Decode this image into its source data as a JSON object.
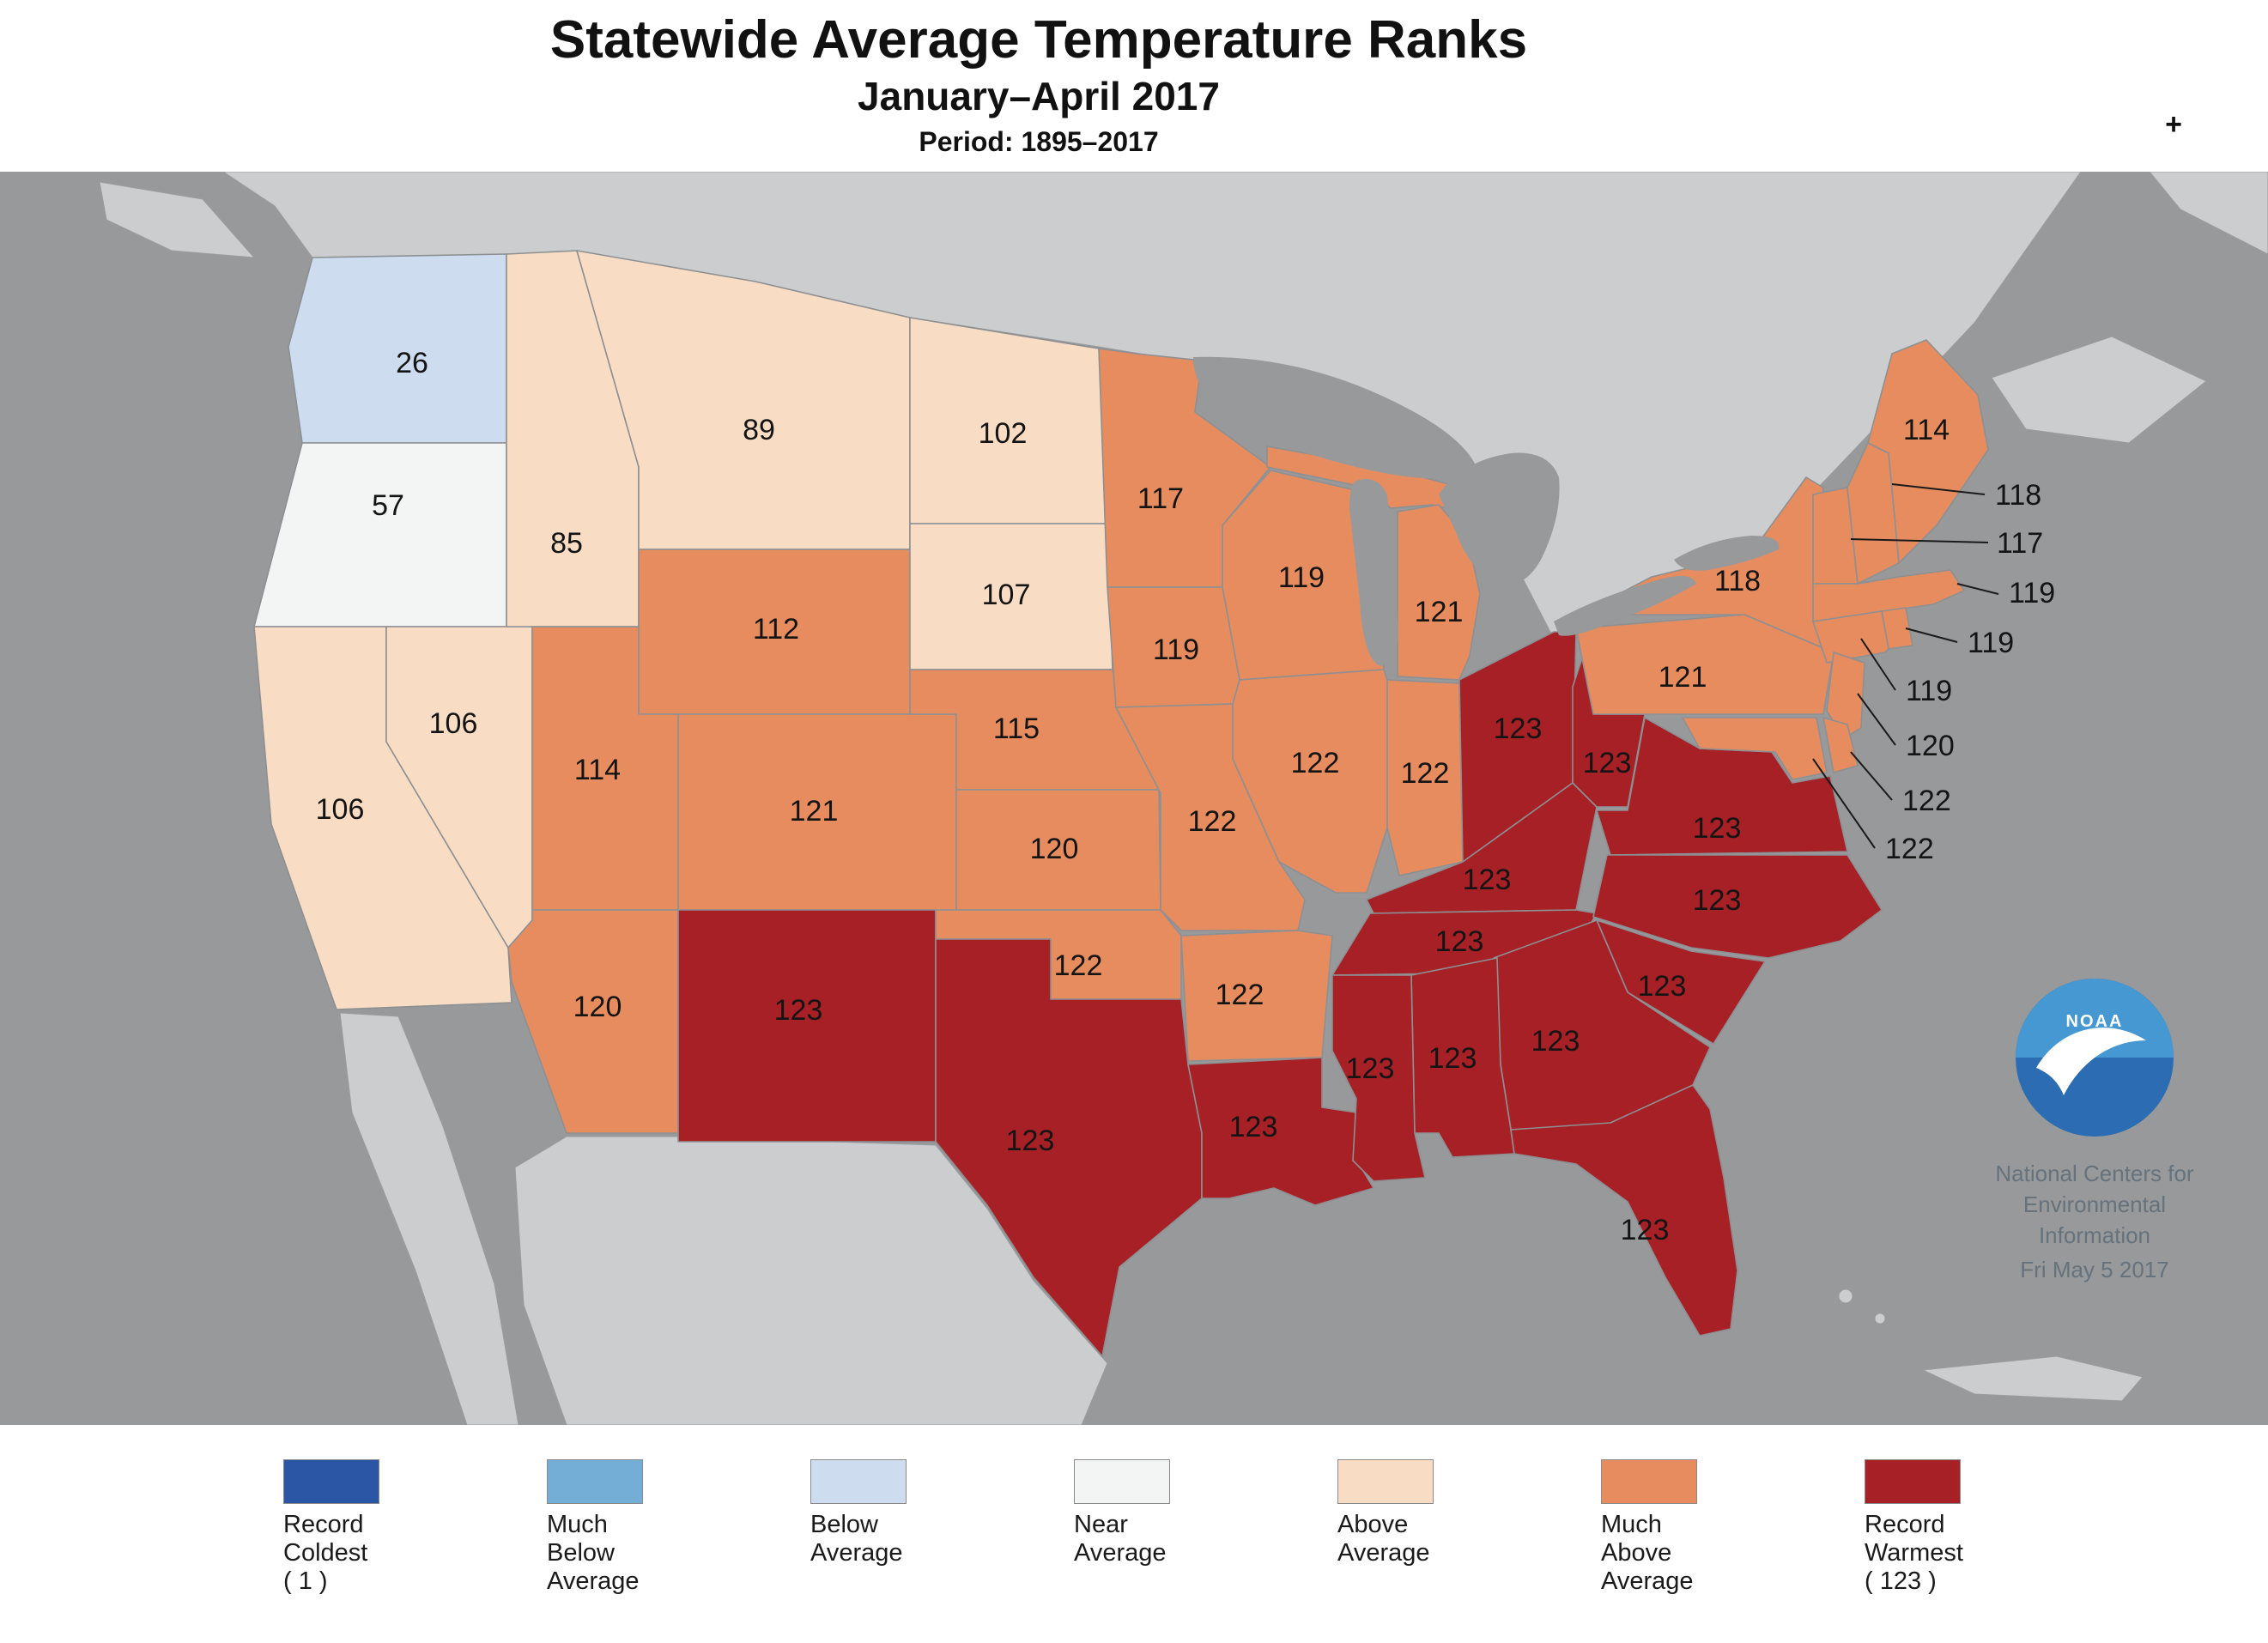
{
  "header": {
    "title": "Statewide Average Temperature Ranks",
    "subtitle": "January–April 2017",
    "period": "Period: 1895–2017",
    "zoom_control": "+"
  },
  "map": {
    "states": [
      {
        "name": "Washington",
        "abbr": "WA",
        "rank": 26,
        "category": "below-average"
      },
      {
        "name": "Oregon",
        "abbr": "OR",
        "rank": 57,
        "category": "near-average"
      },
      {
        "name": "California",
        "abbr": "CA",
        "rank": 106,
        "category": "above-average"
      },
      {
        "name": "Nevada",
        "abbr": "NV",
        "rank": 106,
        "category": "above-average"
      },
      {
        "name": "Idaho",
        "abbr": "ID",
        "rank": 85,
        "category": "above-average"
      },
      {
        "name": "Montana",
        "abbr": "MT",
        "rank": 89,
        "category": "above-average"
      },
      {
        "name": "Wyoming",
        "abbr": "WY",
        "rank": 112,
        "category": "much-above-average"
      },
      {
        "name": "Utah",
        "abbr": "UT",
        "rank": 114,
        "category": "much-above-average"
      },
      {
        "name": "Colorado",
        "abbr": "CO",
        "rank": 121,
        "category": "much-above-average"
      },
      {
        "name": "Arizona",
        "abbr": "AZ",
        "rank": 120,
        "category": "much-above-average"
      },
      {
        "name": "New Mexico",
        "abbr": "NM",
        "rank": 123,
        "category": "record-warmest"
      },
      {
        "name": "North Dakota",
        "abbr": "ND",
        "rank": 102,
        "category": "above-average"
      },
      {
        "name": "South Dakota",
        "abbr": "SD",
        "rank": 107,
        "category": "above-average"
      },
      {
        "name": "Nebraska",
        "abbr": "NE",
        "rank": 115,
        "category": "much-above-average"
      },
      {
        "name": "Kansas",
        "abbr": "KS",
        "rank": 120,
        "category": "much-above-average"
      },
      {
        "name": "Oklahoma",
        "abbr": "OK",
        "rank": 122,
        "category": "much-above-average"
      },
      {
        "name": "Texas",
        "abbr": "TX",
        "rank": 123,
        "category": "record-warmest"
      },
      {
        "name": "Minnesota",
        "abbr": "MN",
        "rank": 117,
        "category": "much-above-average"
      },
      {
        "name": "Iowa",
        "abbr": "IA",
        "rank": 119,
        "category": "much-above-average"
      },
      {
        "name": "Missouri",
        "abbr": "MO",
        "rank": 122,
        "category": "much-above-average"
      },
      {
        "name": "Arkansas",
        "abbr": "AR",
        "rank": 122,
        "category": "much-above-average"
      },
      {
        "name": "Louisiana",
        "abbr": "LA",
        "rank": 123,
        "category": "record-warmest"
      },
      {
        "name": "Wisconsin",
        "abbr": "WI",
        "rank": 119,
        "category": "much-above-average"
      },
      {
        "name": "Illinois",
        "abbr": "IL",
        "rank": 122,
        "category": "much-above-average"
      },
      {
        "name": "Michigan",
        "abbr": "MI",
        "rank": 121,
        "category": "much-above-average"
      },
      {
        "name": "Indiana",
        "abbr": "IN",
        "rank": 122,
        "category": "much-above-average"
      },
      {
        "name": "Ohio",
        "abbr": "OH",
        "rank": 123,
        "category": "record-warmest"
      },
      {
        "name": "Kentucky",
        "abbr": "KY",
        "rank": 123,
        "category": "record-warmest"
      },
      {
        "name": "Tennessee",
        "abbr": "TN",
        "rank": 123,
        "category": "record-warmest"
      },
      {
        "name": "Mississippi",
        "abbr": "MS",
        "rank": 123,
        "category": "record-warmest"
      },
      {
        "name": "Alabama",
        "abbr": "AL",
        "rank": 123,
        "category": "record-warmest"
      },
      {
        "name": "Georgia",
        "abbr": "GA",
        "rank": 123,
        "category": "record-warmest"
      },
      {
        "name": "Florida",
        "abbr": "FL",
        "rank": 123,
        "category": "record-warmest"
      },
      {
        "name": "South Carolina",
        "abbr": "SC",
        "rank": 123,
        "category": "record-warmest"
      },
      {
        "name": "North Carolina",
        "abbr": "NC",
        "rank": 123,
        "category": "record-warmest"
      },
      {
        "name": "Virginia",
        "abbr": "VA",
        "rank": 123,
        "category": "record-warmest"
      },
      {
        "name": "West Virginia",
        "abbr": "WV",
        "rank": 123,
        "category": "record-warmest"
      },
      {
        "name": "Pennsylvania",
        "abbr": "PA",
        "rank": 121,
        "category": "much-above-average"
      },
      {
        "name": "New York",
        "abbr": "NY",
        "rank": 118,
        "category": "much-above-average"
      },
      {
        "name": "Maine",
        "abbr": "ME",
        "rank": 114,
        "category": "much-above-average"
      },
      {
        "name": "Vermont",
        "abbr": "VT",
        "rank": 117,
        "category": "much-above-average"
      },
      {
        "name": "New Hampshire",
        "abbr": "NH",
        "rank": 118,
        "category": "much-above-average"
      },
      {
        "name": "Massachusetts",
        "abbr": "MA",
        "rank": 119,
        "category": "much-above-average"
      },
      {
        "name": "Rhode Island",
        "abbr": "RI",
        "rank": 119,
        "category": "much-above-average"
      },
      {
        "name": "Connecticut",
        "abbr": "CT",
        "rank": 119,
        "category": "much-above-average"
      },
      {
        "name": "New Jersey",
        "abbr": "NJ",
        "rank": 120,
        "category": "much-above-average"
      },
      {
        "name": "Delaware",
        "abbr": "DE",
        "rank": 122,
        "category": "much-above-average"
      },
      {
        "name": "Maryland",
        "abbr": "MD",
        "rank": 122,
        "category": "much-above-average"
      }
    ],
    "callouts": [
      {
        "abbr": "NH",
        "rank": 118
      },
      {
        "abbr": "VT",
        "rank": 117
      },
      {
        "abbr": "MA",
        "rank": 119
      },
      {
        "abbr": "RI",
        "rank": 119
      },
      {
        "abbr": "CT",
        "rank": 119
      },
      {
        "abbr": "NJ",
        "rank": 120
      },
      {
        "abbr": "DE",
        "rank": 122
      },
      {
        "abbr": "MD",
        "rank": 122
      }
    ],
    "logo_text": "NOAA",
    "attribution": [
      "National Centers for",
      "Environmental",
      "Information",
      "Fri May 5 2017"
    ]
  },
  "legend": {
    "items": [
      {
        "category": "record-coldest",
        "color": "#2b55a5",
        "lines": [
          "Record",
          "Coldest",
          "( 1 )"
        ]
      },
      {
        "category": "much-below-average",
        "color": "#74add6",
        "lines": [
          "Much",
          "Below",
          "Average"
        ]
      },
      {
        "category": "below-average",
        "color": "#cdddef",
        "lines": [
          "Below",
          "Average"
        ]
      },
      {
        "category": "near-average",
        "color": "#f2f5f3",
        "lines": [
          "Near",
          "Average"
        ]
      },
      {
        "category": "above-average",
        "color": "#f9dcc4",
        "lines": [
          "Above",
          "Average"
        ]
      },
      {
        "category": "much-above-average",
        "color": "#e68c5f",
        "lines": [
          "Much",
          "Above",
          "Average"
        ]
      },
      {
        "category": "record-warmest",
        "color": "#a72025",
        "lines": [
          "Record",
          "Warmest",
          "( 123 )"
        ]
      }
    ]
  },
  "colors": {
    "ocean": "#97999b",
    "foreign_land": "#cccdce",
    "state_border": "#8d9093"
  }
}
